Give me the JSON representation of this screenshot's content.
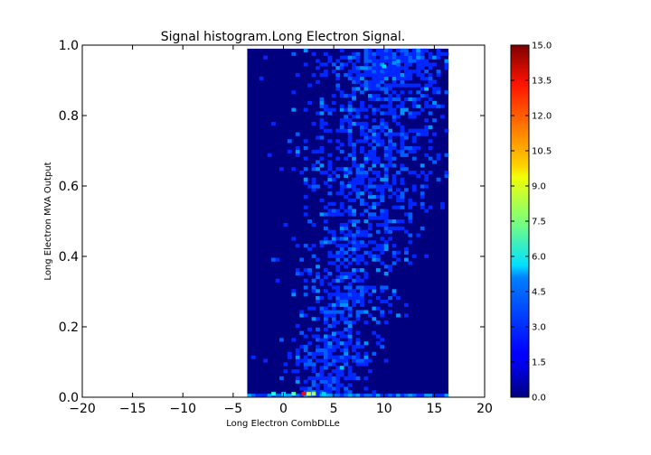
{
  "chart_data": {
    "type": "heatmap",
    "title": "Signal histogram.Long Electron Signal.",
    "xlabel": "Long Electron CombDLLe",
    "ylabel": "Long Electron MVA Output",
    "xlim": [
      -20,
      20
    ],
    "ylim": [
      0.0,
      1.0
    ],
    "x_ticks": [
      "−20",
      "−15",
      "−10",
      "−5",
      "0",
      "5",
      "10",
      "15",
      "20"
    ],
    "y_ticks": [
      "0.0",
      "0.2",
      "0.4",
      "0.6",
      "0.8",
      "1.0"
    ],
    "colorbar": {
      "range": [
        0.0,
        15.0
      ],
      "ticks": [
        "0.0",
        "1.5",
        "3.0",
        "4.5",
        "6.0",
        "7.5",
        "9.0",
        "10.5",
        "12.0",
        "13.5",
        "15.0"
      ],
      "colormap": "jet"
    },
    "populated_x_range": [
      -3.6,
      16.4
    ],
    "populated_y_range": [
      0.0,
      0.99
    ],
    "background_color": "#00007f",
    "hotspots": [
      {
        "x": 2.0,
        "y": 0.01,
        "count": 13
      },
      {
        "x": 2.5,
        "y": 0.01,
        "count": 9
      },
      {
        "x": 3.0,
        "y": 0.01,
        "count": 8
      },
      {
        "x": 1.0,
        "y": 0.01,
        "count": 7
      },
      {
        "x": -1.0,
        "y": 0.01,
        "count": 6
      },
      {
        "x": 4.0,
        "y": 0.01,
        "count": 5
      },
      {
        "x": 0.0,
        "y": 0.01,
        "count": 5
      },
      {
        "x": 10.0,
        "y": 0.94,
        "count": 5
      },
      {
        "x": 11.0,
        "y": 0.95,
        "count": 4
      },
      {
        "x": 7.0,
        "y": 0.85,
        "count": 4
      },
      {
        "x": 6.5,
        "y": 0.6,
        "count": 4
      },
      {
        "x": 5.0,
        "y": 0.18,
        "count": 4
      }
    ]
  }
}
